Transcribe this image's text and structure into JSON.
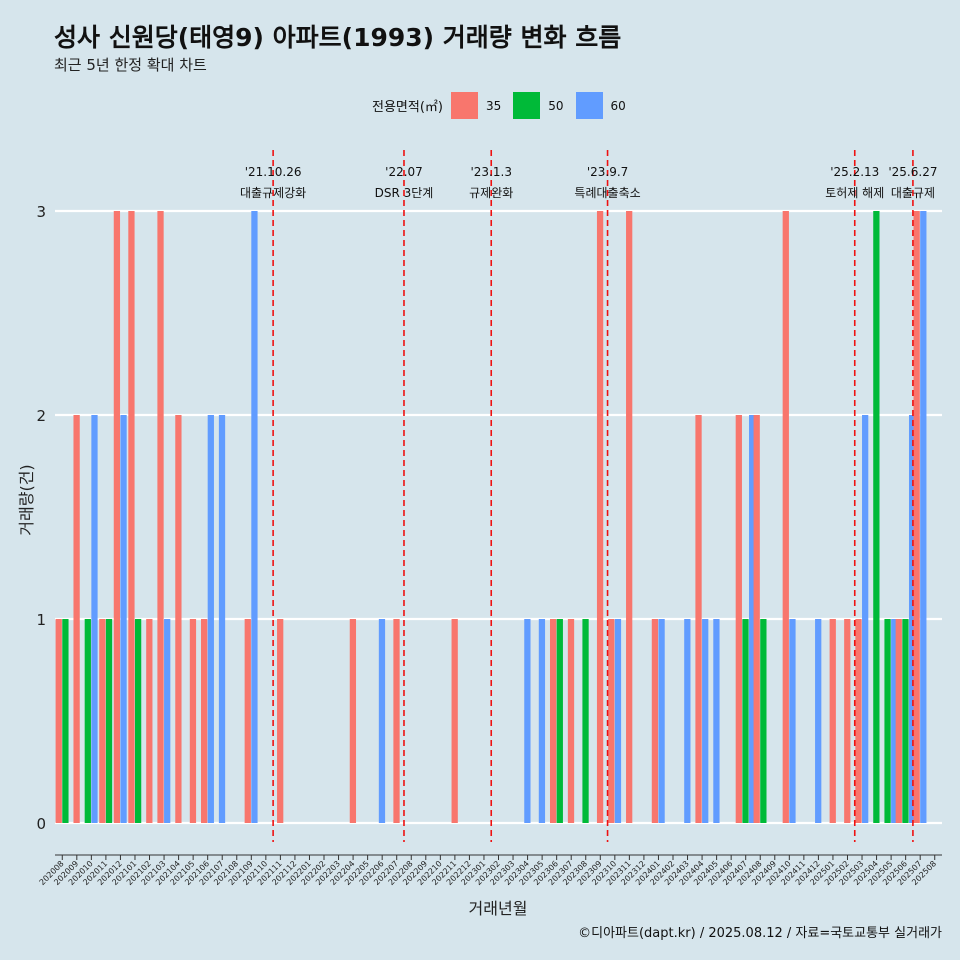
{
  "title": "성사 신원당(태영9) 아파트(1993) 거래량 변화 흐름",
  "subtitle": "최근 5년 한정 확대 차트",
  "caption": "©디아파트(dapt.kr) / 2025.08.12 / 자료=국토교통부 실거래가",
  "colors": {
    "35": "#f8766d",
    "50": "#00ba38",
    "60": "#619cff"
  },
  "chart_data": {
    "type": "bar",
    "xlabel": "거래년월",
    "ylabel": "거래량(건)",
    "ylim": [
      0,
      3
    ],
    "y_ticks": [
      0,
      1,
      2,
      3
    ],
    "legend": {
      "title": "전용면적(㎡)",
      "position": "top",
      "entries": [
        "35",
        "50",
        "60"
      ]
    },
    "grid": true,
    "categories": [
      "202008",
      "202009",
      "202010",
      "202011",
      "202012",
      "202101",
      "202102",
      "202103",
      "202104",
      "202105",
      "202106",
      "202107",
      "202108",
      "202109",
      "202110",
      "202111",
      "202112",
      "202201",
      "202202",
      "202203",
      "202204",
      "202205",
      "202206",
      "202207",
      "202208",
      "202209",
      "202210",
      "202211",
      "202212",
      "202301",
      "202302",
      "202303",
      "202304",
      "202305",
      "202306",
      "202307",
      "202308",
      "202309",
      "202310",
      "202311",
      "202312",
      "202401",
      "202402",
      "202403",
      "202404",
      "202405",
      "202406",
      "202407",
      "202408",
      "202409",
      "202410",
      "202411",
      "202412",
      "202501",
      "202502",
      "202503",
      "202504",
      "202505",
      "202506",
      "202507",
      "202508"
    ],
    "series": [
      {
        "name": "35",
        "values": [
          1,
          2,
          0,
          1,
          3,
          3,
          1,
          3,
          2,
          1,
          1,
          0,
          0,
          1,
          0,
          1,
          0,
          0,
          0,
          0,
          1,
          0,
          0,
          1,
          0,
          0,
          0,
          1,
          0,
          0,
          0,
          0,
          0,
          0,
          1,
          1,
          0,
          3,
          1,
          3,
          0,
          1,
          0,
          0,
          2,
          0,
          0,
          2,
          2,
          0,
          3,
          0,
          0,
          1,
          1,
          1,
          0,
          0,
          1,
          3,
          0
        ]
      },
      {
        "name": "50",
        "values": [
          1,
          0,
          1,
          1,
          0,
          1,
          0,
          0,
          0,
          0,
          0,
          0,
          0,
          0,
          0,
          0,
          0,
          0,
          0,
          0,
          0,
          0,
          0,
          0,
          0,
          0,
          0,
          0,
          0,
          0,
          0,
          0,
          0,
          0,
          1,
          0,
          1,
          0,
          0,
          0,
          0,
          0,
          0,
          0,
          0,
          0,
          0,
          1,
          1,
          0,
          0,
          0,
          0,
          0,
          0,
          0,
          3,
          1,
          1,
          0,
          0
        ]
      },
      {
        "name": "60",
        "values": [
          0,
          0,
          2,
          0,
          2,
          0,
          0,
          1,
          0,
          0,
          2,
          2,
          0,
          3,
          0,
          0,
          0,
          0,
          0,
          0,
          0,
          0,
          1,
          0,
          0,
          0,
          0,
          0,
          0,
          0,
          0,
          0,
          1,
          1,
          0,
          0,
          0,
          0,
          1,
          0,
          0,
          1,
          0,
          1,
          1,
          1,
          0,
          2,
          0,
          0,
          1,
          0,
          1,
          0,
          0,
          2,
          0,
          1,
          2,
          3,
          0
        ]
      }
    ],
    "annotations": [
      {
        "after": "202110",
        "date": "'21.10.26",
        "label": "대출규제강화"
      },
      {
        "after": "202207",
        "date": "'22.07",
        "label": "DSR 3단계"
      },
      {
        "after": "202301",
        "date": "'23.1.3",
        "label": "규제완화"
      },
      {
        "after": "202309",
        "date": "'23.9.7",
        "label": "특례대출축소"
      },
      {
        "after": "202502",
        "date": "'25.2.13",
        "label": "토허제 해제"
      },
      {
        "after": "202506",
        "date": "'25.6.27",
        "label": "대출규제"
      }
    ]
  }
}
